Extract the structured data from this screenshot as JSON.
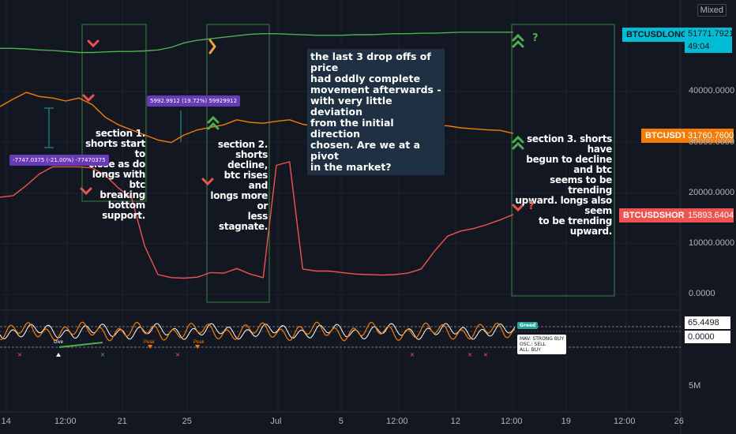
{
  "scale_mode": "Mixed",
  "colors": {
    "background": "#131722",
    "longs": "#4caf50",
    "usdt": "#f57c00",
    "shorts": "#ef5350",
    "box": "#4caf50",
    "callout_bg": "#1e3041",
    "measure_bg": "#673ab7"
  },
  "tags": {
    "longs": {
      "symbol": "BTCUSDLONGS",
      "value": "51771.7921",
      "countdown": "49:04"
    },
    "usdt": {
      "symbol": "BTCUSDT",
      "value": "31760.7600"
    },
    "shorts": {
      "symbol": "BTCUSDSHORTS",
      "value": "15893.6404"
    }
  },
  "oscillator": {
    "value_top": "65.4498",
    "value_zero": "0.0000",
    "badge": "Greed",
    "legend": [
      "MAV:     STRONG BUY",
      "OSC.:  SELL",
      "ALL:    BUY"
    ],
    "peak_labels": [
      "Peak",
      "Peak"
    ],
    "dive_label": "Dive"
  },
  "measures": [
    {
      "text": "-7747.0375 (-21.00%) -77470375"
    },
    {
      "text": "5992.9912 (19.72%) 59929912"
    }
  ],
  "annotations": {
    "section1": "section 1.\nshorts start to\nclose as do\nlongs with btc\nbreaking\nbottom\nsupport.",
    "section2": "section 2.\nshorts decline,\nbtc rises and\nlongs more or\nless stagnate.",
    "section3": "section 3. shorts have\nbegun to decline and btc\nseems to be trending\nupward. longs also seem\nto be trending upward.",
    "callout": "the last 3 drop offs of price\nhad oddly complete\nmovement afterwards -\nwith very little deviation\nfrom the initial direction\nchosen. Are we at a pivot\nin the market?",
    "question_marks": [
      "?",
      "?"
    ]
  },
  "chart_data": {
    "type": "line",
    "x_tick_labels": [
      "14",
      "12:00",
      "21",
      "25",
      "Jul",
      "5",
      "12:00",
      "12",
      "12:00",
      "19",
      "12:00",
      "26"
    ],
    "y_tick_labels": [
      "40000.0000",
      "30000.0000",
      "20000.0000",
      "10000.0000",
      "0.0000"
    ],
    "oscillator_tick_labels": [
      "5M"
    ],
    "ylim": [
      0,
      57000
    ],
    "grid": true,
    "series": [
      {
        "name": "BTCUSDLONGS",
        "values": [
          48600,
          48600,
          48500,
          48300,
          48200,
          48000,
          47800,
          47800,
          47900,
          48000,
          48000,
          48100,
          48300,
          48800,
          49700,
          50200,
          50500,
          50800,
          51100,
          51400,
          51500,
          51500,
          51400,
          51300,
          51200,
          51200,
          51200,
          51300,
          51300,
          51400,
          51500,
          51500,
          51600,
          51600,
          51700,
          51800,
          51800,
          51800,
          51800,
          51800
        ]
      },
      {
        "name": "BTCUSDT",
        "values": [
          37100,
          38600,
          39900,
          39100,
          38800,
          38200,
          38800,
          37500,
          35000,
          33500,
          32500,
          31500,
          30500,
          30000,
          31500,
          32500,
          33000,
          33500,
          34500,
          34000,
          33800,
          34200,
          34500,
          33600,
          33200,
          33500,
          34200,
          33800,
          33800,
          33400,
          34000,
          34200,
          33500,
          33400,
          33300,
          32900,
          32700,
          32500,
          32400,
          31800
        ]
      },
      {
        "name": "BTCUSDSHORTS",
        "values": [
          19200,
          19500,
          21500,
          23800,
          25200,
          25200,
          25200,
          25000,
          23500,
          21000,
          19000,
          9500,
          3900,
          3300,
          3200,
          3400,
          4300,
          4200,
          5100,
          4000,
          3300,
          25500,
          26200,
          5000,
          4600,
          4600,
          4300,
          4000,
          3900,
          3800,
          3900,
          4200,
          5000,
          8500,
          11500,
          12500,
          13000,
          13800,
          14700,
          15800
        ]
      }
    ]
  }
}
